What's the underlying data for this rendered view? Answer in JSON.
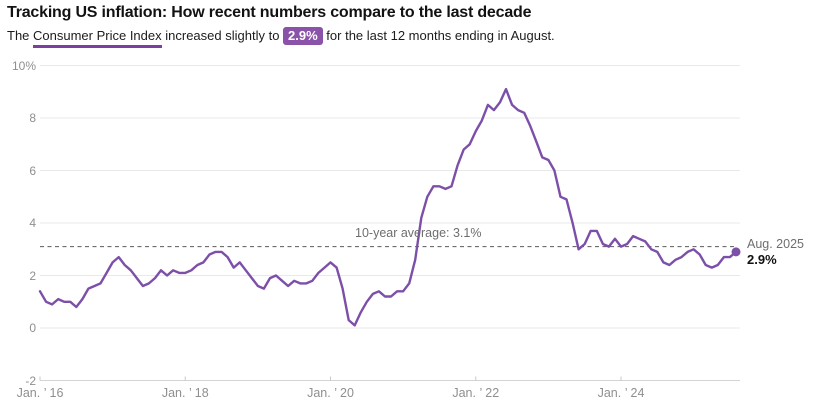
{
  "header": {
    "title": "Tracking US inflation: How recent numbers compare to the last decade",
    "subtitle_prefix": "The ",
    "subtitle_link": "Consumer Price Index",
    "subtitle_mid": " increased slightly to ",
    "badge_value": "2.9%",
    "subtitle_suffix": " for the last 12 months ending in August."
  },
  "annotations": {
    "average_label": "10-year average: 3.1%",
    "endpoint_date": "Aug. 2025",
    "endpoint_value": "2.9%"
  },
  "colors": {
    "line": "#7c4fa8",
    "badge": "#8a52a8",
    "underline": "#7c3f9e",
    "gridline": "#e9e9e9",
    "axis": "#d4d4d4",
    "tick": "#c9c9c9",
    "avg_line": "#5a5a5a",
    "text_dark": "#121212",
    "axis_text": "#8f8f8f",
    "annotation_gray": "#6e6e6e"
  },
  "chart_data": {
    "type": "line",
    "title": "Tracking US inflation: How recent numbers compare to the last decade",
    "x_start": "2016-01",
    "x_end": "2025-08",
    "x_frequency": "monthly",
    "x_tick_labels": [
      "Jan. ’ 16",
      "Jan. ’ 18",
      "Jan. ’ 20",
      "Jan. ’ 22",
      "Jan. ’ 24"
    ],
    "x_tick_indices": [
      0,
      24,
      48,
      72,
      96
    ],
    "y_ticks": [
      10,
      8,
      6,
      4,
      2,
      0,
      -2
    ],
    "y_tick_labels": [
      "10%",
      "8",
      "6",
      "4",
      "2",
      "0",
      "-2"
    ],
    "ylim": [
      -2,
      10
    ],
    "grid": "horizontal",
    "average": 3.1,
    "series": [
      {
        "name": "CPI 12-month percent change",
        "values": [
          1.4,
          1.0,
          0.9,
          1.1,
          1.0,
          1.0,
          0.8,
          1.1,
          1.5,
          1.6,
          1.7,
          2.1,
          2.5,
          2.7,
          2.4,
          2.2,
          1.9,
          1.6,
          1.7,
          1.9,
          2.2,
          2.0,
          2.2,
          2.1,
          2.1,
          2.2,
          2.4,
          2.5,
          2.8,
          2.9,
          2.9,
          2.7,
          2.3,
          2.5,
          2.2,
          1.9,
          1.6,
          1.5,
          1.9,
          2.0,
          1.8,
          1.6,
          1.8,
          1.7,
          1.7,
          1.8,
          2.1,
          2.3,
          2.5,
          2.3,
          1.5,
          0.3,
          0.1,
          0.6,
          1.0,
          1.3,
          1.4,
          1.2,
          1.2,
          1.4,
          1.4,
          1.7,
          2.6,
          4.2,
          5.0,
          5.4,
          5.4,
          5.3,
          5.4,
          6.2,
          6.8,
          7.0,
          7.5,
          7.9,
          8.5,
          8.3,
          8.6,
          9.1,
          8.5,
          8.3,
          8.2,
          7.7,
          7.1,
          6.5,
          6.4,
          6.0,
          5.0,
          4.9,
          4.0,
          3.0,
          3.2,
          3.7,
          3.7,
          3.2,
          3.1,
          3.4,
          3.1,
          3.2,
          3.5,
          3.4,
          3.3,
          3.0,
          2.9,
          2.5,
          2.4,
          2.6,
          2.7,
          2.9,
          3.0,
          2.8,
          2.4,
          2.3,
          2.4,
          2.7,
          2.7,
          2.9
        ]
      }
    ],
    "endpoint": {
      "label": "Aug. 2025",
      "value": 2.9
    }
  }
}
